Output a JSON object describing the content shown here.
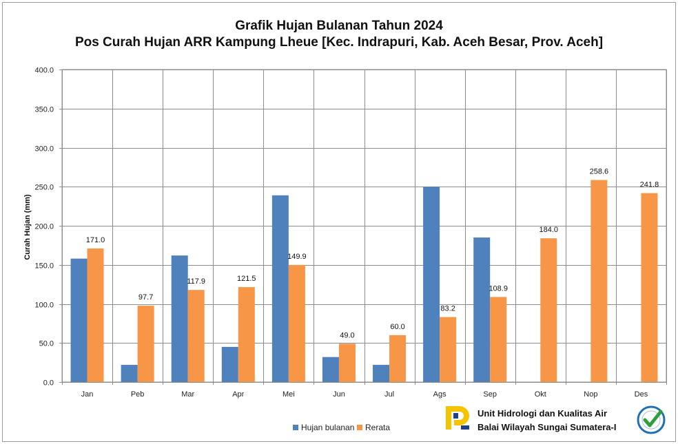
{
  "chart_data": {
    "type": "bar",
    "title": "Grafik Hujan Bulanan Tahun 2024",
    "subtitle": "Pos Curah Hujan ARR  Kampung Lheue [Kec. Indrapuri, Kab. Aceh Besar, Prov. Aceh]",
    "xlabel": "",
    "ylabel": "Curah Hujan (mm)",
    "ylim": [
      0,
      400
    ],
    "yticks": [
      "0.0",
      "50.0",
      "100.0",
      "150.0",
      "200.0",
      "250.0",
      "300.0",
      "350.0",
      "400.0"
    ],
    "grid": true,
    "legend_position": "bottom",
    "categories": [
      "Jan",
      "Peb",
      "Mar",
      "Apr",
      "Mei",
      "Jun",
      "Jul",
      "Ags",
      "Sep",
      "Okt",
      "Nop",
      "Des"
    ],
    "series": [
      {
        "name": "Hujan bulanan",
        "color": "#4f81bd",
        "values": [
          158,
          22,
          162,
          45,
          239,
          32,
          22,
          250,
          185,
          null,
          null,
          null
        ],
        "labels": [
          "",
          "",
          "",
          "",
          "",
          "",
          "",
          "",
          "",
          "",
          "",
          ""
        ]
      },
      {
        "name": "Rerata",
        "color": "#f79646",
        "values": [
          171.0,
          97.7,
          117.9,
          121.5,
          149.9,
          49.0,
          60.0,
          83.2,
          108.9,
          184.0,
          258.6,
          241.8
        ],
        "labels": [
          "171.0",
          "97.7",
          "117.9",
          "121.5",
          "149.9",
          "49.0",
          "60.0",
          "83.2",
          "108.9",
          "184.0",
          "258.6",
          "241.8"
        ]
      }
    ]
  },
  "footer": {
    "institution_line1": "Unit Hidrologi dan Kualitas Air",
    "institution_line2": "Balai Wilayah Sungai Sumatera-I",
    "logo_icon": "pu-logo-icon",
    "certification_icon": "iso-certified-icon"
  }
}
